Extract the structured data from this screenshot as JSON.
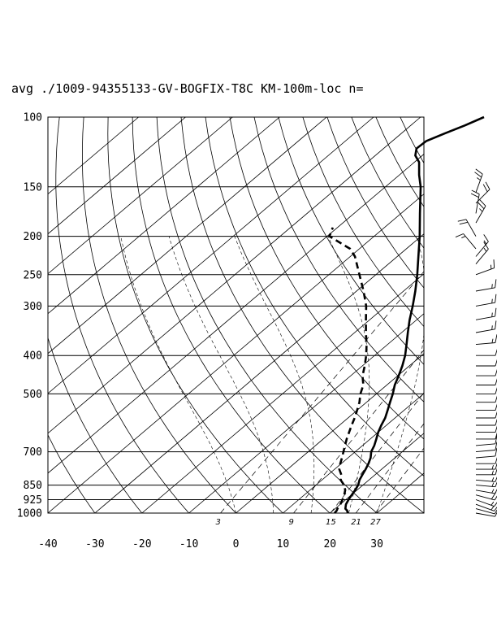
{
  "title": "avg ./1009-94355133-GV-BOGFIX-T8C KM-100m-loc n=",
  "chart_data": {
    "type": "skew-t",
    "pressure_axis": {
      "ticks": [
        100,
        150,
        200,
        250,
        300,
        400,
        500,
        700,
        850,
        925,
        1000
      ],
      "labels": [
        "100",
        "150",
        "200",
        "250",
        "300",
        "400",
        "500",
        "700",
        "850",
        "925",
        "1000"
      ],
      "range": [
        1000,
        100
      ],
      "scale": "log"
    },
    "temperature_axis": {
      "ticks": [
        -40,
        -30,
        -20,
        -10,
        0,
        10,
        20,
        30
      ],
      "labels": [
        "-40",
        "-30",
        "-20",
        "-10",
        "0",
        "10",
        "20",
        "30"
      ],
      "range_at_surface": [
        -40,
        40
      ]
    },
    "mixing_ratio_labels": [
      "3",
      "9",
      "15",
      "21",
      "27"
    ],
    "grid": true,
    "temperature_profile": [
      [
        1000,
        23.8
      ],
      [
        985,
        23.0
      ],
      [
        975,
        22.2
      ],
      [
        950,
        21.2
      ],
      [
        925,
        20.6
      ],
      [
        900,
        20.1
      ],
      [
        875,
        19.6
      ],
      [
        850,
        19.0
      ],
      [
        825,
        18.0
      ],
      [
        800,
        17.3
      ],
      [
        775,
        16.6
      ],
      [
        750,
        15.8
      ],
      [
        725,
        14.8
      ],
      [
        700,
        13.4
      ],
      [
        675,
        12.5
      ],
      [
        650,
        11.3
      ],
      [
        625,
        10.0
      ],
      [
        600,
        8.9
      ],
      [
        575,
        7.9
      ],
      [
        550,
        6.5
      ],
      [
        525,
        5.0
      ],
      [
        500,
        3.5
      ],
      [
        475,
        1.7
      ],
      [
        450,
        0.2
      ],
      [
        425,
        -1.5
      ],
      [
        400,
        -3.5
      ],
      [
        375,
        -6.0
      ],
      [
        350,
        -8.7
      ],
      [
        325,
        -11.5
      ],
      [
        300,
        -14.3
      ],
      [
        275,
        -17.5
      ],
      [
        250,
        -21.2
      ],
      [
        225,
        -25.5
      ],
      [
        200,
        -30.3
      ],
      [
        175,
        -36.0
      ],
      [
        150,
        -42.5
      ],
      [
        140,
        -45.8
      ],
      [
        130,
        -49.0
      ],
      [
        125,
        -51.5
      ],
      [
        120,
        -53.0
      ],
      [
        115,
        -52.8
      ],
      [
        110,
        -50.8
      ],
      [
        105,
        -48.5
      ],
      [
        100,
        -46.5
      ]
    ],
    "dewpoint_profile": [
      [
        1000,
        21.0
      ],
      [
        985,
        20.8
      ],
      [
        975,
        20.5
      ],
      [
        950,
        20.0
      ],
      [
        925,
        19.3
      ],
      [
        900,
        18.5
      ],
      [
        875,
        17.5
      ],
      [
        850,
        16.0
      ],
      [
        825,
        14.0
      ],
      [
        800,
        12.8
      ],
      [
        775,
        11.0
      ],
      [
        750,
        9.8
      ],
      [
        725,
        8.7
      ],
      [
        700,
        7.5
      ],
      [
        650,
        5.0
      ],
      [
        600,
        2.6
      ],
      [
        575,
        1.4
      ],
      [
        550,
        0.0
      ],
      [
        525,
        -1.5
      ],
      [
        500,
        -3.4
      ],
      [
        475,
        -5.0
      ],
      [
        450,
        -7.5
      ],
      [
        425,
        -9.5
      ],
      [
        400,
        -11.8
      ],
      [
        375,
        -14.5
      ],
      [
        350,
        -17.6
      ],
      [
        325,
        -20.8
      ],
      [
        300,
        -24.2
      ],
      [
        275,
        -28.5
      ],
      [
        250,
        -33.5
      ],
      [
        225,
        -39.0
      ],
      [
        215,
        -42.0
      ],
      [
        200,
        -49.5
      ],
      [
        190,
        -51.0
      ]
    ],
    "wind_profile": [
      {
        "p": 1000,
        "dir": 100,
        "kt": 10
      },
      {
        "p": 975,
        "dir": 105,
        "kt": 12
      },
      {
        "p": 950,
        "dir": 110,
        "kt": 15
      },
      {
        "p": 925,
        "dir": 110,
        "kt": 17
      },
      {
        "p": 900,
        "dir": 105,
        "kt": 18
      },
      {
        "p": 875,
        "dir": 100,
        "kt": 17
      },
      {
        "p": 850,
        "dir": 95,
        "kt": 16
      },
      {
        "p": 825,
        "dir": 95,
        "kt": 15
      },
      {
        "p": 800,
        "dir": 90,
        "kt": 14
      },
      {
        "p": 775,
        "dir": 90,
        "kt": 13
      },
      {
        "p": 750,
        "dir": 90,
        "kt": 12
      },
      {
        "p": 725,
        "dir": 85,
        "kt": 12
      },
      {
        "p": 700,
        "dir": 85,
        "kt": 12
      },
      {
        "p": 675,
        "dir": 85,
        "kt": 12
      },
      {
        "p": 650,
        "dir": 90,
        "kt": 12
      },
      {
        "p": 625,
        "dir": 90,
        "kt": 12
      },
      {
        "p": 600,
        "dir": 90,
        "kt": 12
      },
      {
        "p": 575,
        "dir": 90,
        "kt": 12
      },
      {
        "p": 550,
        "dir": 90,
        "kt": 12
      },
      {
        "p": 525,
        "dir": 90,
        "kt": 12
      },
      {
        "p": 500,
        "dir": 90,
        "kt": 12
      },
      {
        "p": 475,
        "dir": 90,
        "kt": 12
      },
      {
        "p": 450,
        "dir": 90,
        "kt": 12
      },
      {
        "p": 425,
        "dir": 90,
        "kt": 12
      },
      {
        "p": 400,
        "dir": 90,
        "kt": 12
      },
      {
        "p": 375,
        "dir": 85,
        "kt": 14
      },
      {
        "p": 350,
        "dir": 80,
        "kt": 15
      },
      {
        "p": 325,
        "dir": 80,
        "kt": 15
      },
      {
        "p": 300,
        "dir": 80,
        "kt": 15
      },
      {
        "p": 275,
        "dir": 80,
        "kt": 15
      },
      {
        "p": 250,
        "dir": 70,
        "kt": 15
      },
      {
        "p": 235,
        "dir": 40,
        "kt": 15
      },
      {
        "p": 225,
        "dir": 40,
        "kt": 15
      },
      {
        "p": 215,
        "dir": 320,
        "kt": 15
      },
      {
        "p": 200,
        "dir": 330,
        "kt": 20
      },
      {
        "p": 185,
        "dir": 30,
        "kt": 25
      },
      {
        "p": 175,
        "dir": 10,
        "kt": 20
      },
      {
        "p": 165,
        "dir": 45,
        "kt": 20
      },
      {
        "p": 155,
        "dir": 20,
        "kt": 25
      }
    ]
  }
}
